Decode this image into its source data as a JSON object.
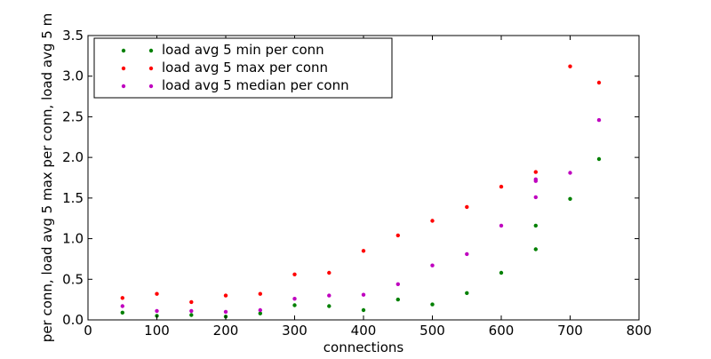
{
  "chart_data": {
    "type": "scatter",
    "xlabel": "connections",
    "ylabel": "per conn, load avg 5 max per conn, load avg 5 m",
    "xlim": [
      0,
      800
    ],
    "ylim": [
      0,
      3.5
    ],
    "xticks": [
      0,
      100,
      200,
      300,
      400,
      500,
      600,
      700,
      800
    ],
    "yticks": [
      0.0,
      0.5,
      1.0,
      1.5,
      2.0,
      2.5,
      3.0,
      3.5
    ],
    "xtick_labels": [
      "0",
      "100",
      "200",
      "300",
      "400",
      "500",
      "600",
      "700",
      "800"
    ],
    "ytick_labels": [
      "0.0",
      "0.5",
      "1.0",
      "1.5",
      "2.0",
      "2.5",
      "3.0",
      "3.5"
    ],
    "grid": false,
    "legend_position": "top-left",
    "series": [
      {
        "name": "load avg 5 min per conn",
        "color": "#008000",
        "points": [
          [
            50,
            0.09
          ],
          [
            100,
            0.05
          ],
          [
            150,
            0.06
          ],
          [
            200,
            0.04
          ],
          [
            250,
            0.08
          ],
          [
            300,
            0.18
          ],
          [
            350,
            0.17
          ],
          [
            400,
            0.12
          ],
          [
            450,
            0.25
          ],
          [
            500,
            0.19
          ],
          [
            550,
            0.33
          ],
          [
            600,
            0.58
          ],
          [
            650,
            0.87
          ],
          [
            650,
            1.16
          ],
          [
            700,
            1.49
          ],
          [
            742,
            1.98
          ]
        ]
      },
      {
        "name": "load avg 5 max per conn",
        "color": "#ff0000",
        "points": [
          [
            50,
            0.27
          ],
          [
            100,
            0.32
          ],
          [
            150,
            0.22
          ],
          [
            200,
            0.3
          ],
          [
            250,
            0.32
          ],
          [
            300,
            0.56
          ],
          [
            350,
            0.58
          ],
          [
            400,
            0.85
          ],
          [
            450,
            1.04
          ],
          [
            500,
            1.22
          ],
          [
            550,
            1.39
          ],
          [
            600,
            1.64
          ],
          [
            650,
            1.82
          ],
          [
            700,
            3.12
          ],
          [
            742,
            2.92
          ]
        ]
      },
      {
        "name": "load avg 5 median per conn",
        "color": "#bf00bf",
        "points": [
          [
            50,
            0.17
          ],
          [
            100,
            0.11
          ],
          [
            150,
            0.11
          ],
          [
            200,
            0.1
          ],
          [
            250,
            0.12
          ],
          [
            300,
            0.26
          ],
          [
            350,
            0.3
          ],
          [
            400,
            0.31
          ],
          [
            450,
            0.44
          ],
          [
            500,
            0.67
          ],
          [
            550,
            0.81
          ],
          [
            600,
            1.16
          ],
          [
            650,
            1.51
          ],
          [
            650,
            1.71
          ],
          [
            650,
            1.73
          ],
          [
            700,
            1.81
          ],
          [
            742,
            2.46
          ]
        ]
      }
    ]
  }
}
